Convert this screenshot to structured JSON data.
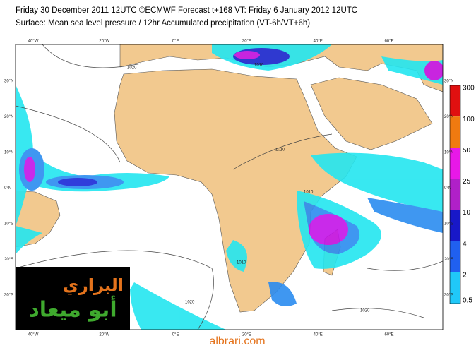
{
  "header": {
    "line1": "Friday 30 December 2011 12UTC ©ECMWF Forecast t+168 VT: Friday 6 January 2012 12UTC",
    "line2": "Surface: Mean sea level pressure / 12hr Accumulated precipitation (VT-6h/VT+6h)"
  },
  "map": {
    "longitude_labels": [
      "40°W",
      "20°W",
      "0°E",
      "20°E",
      "40°E",
      "60°E"
    ],
    "latitude_labels": [
      "30°N",
      "20°N",
      "10°N",
      "0°N",
      "10°S",
      "20°S",
      "30°S"
    ],
    "isobar_labels": [
      "1020",
      "1010",
      "1010",
      "1010",
      "1020",
      "1010",
      "1020"
    ]
  },
  "colorbar": {
    "labels": [
      "300",
      "100",
      "50",
      "25",
      "10",
      "4",
      "2",
      "0.5"
    ]
  },
  "logo": {
    "line1": "البراري",
    "line2": "أبو ميعاد"
  },
  "footer": {
    "website": "albrari.com"
  }
}
